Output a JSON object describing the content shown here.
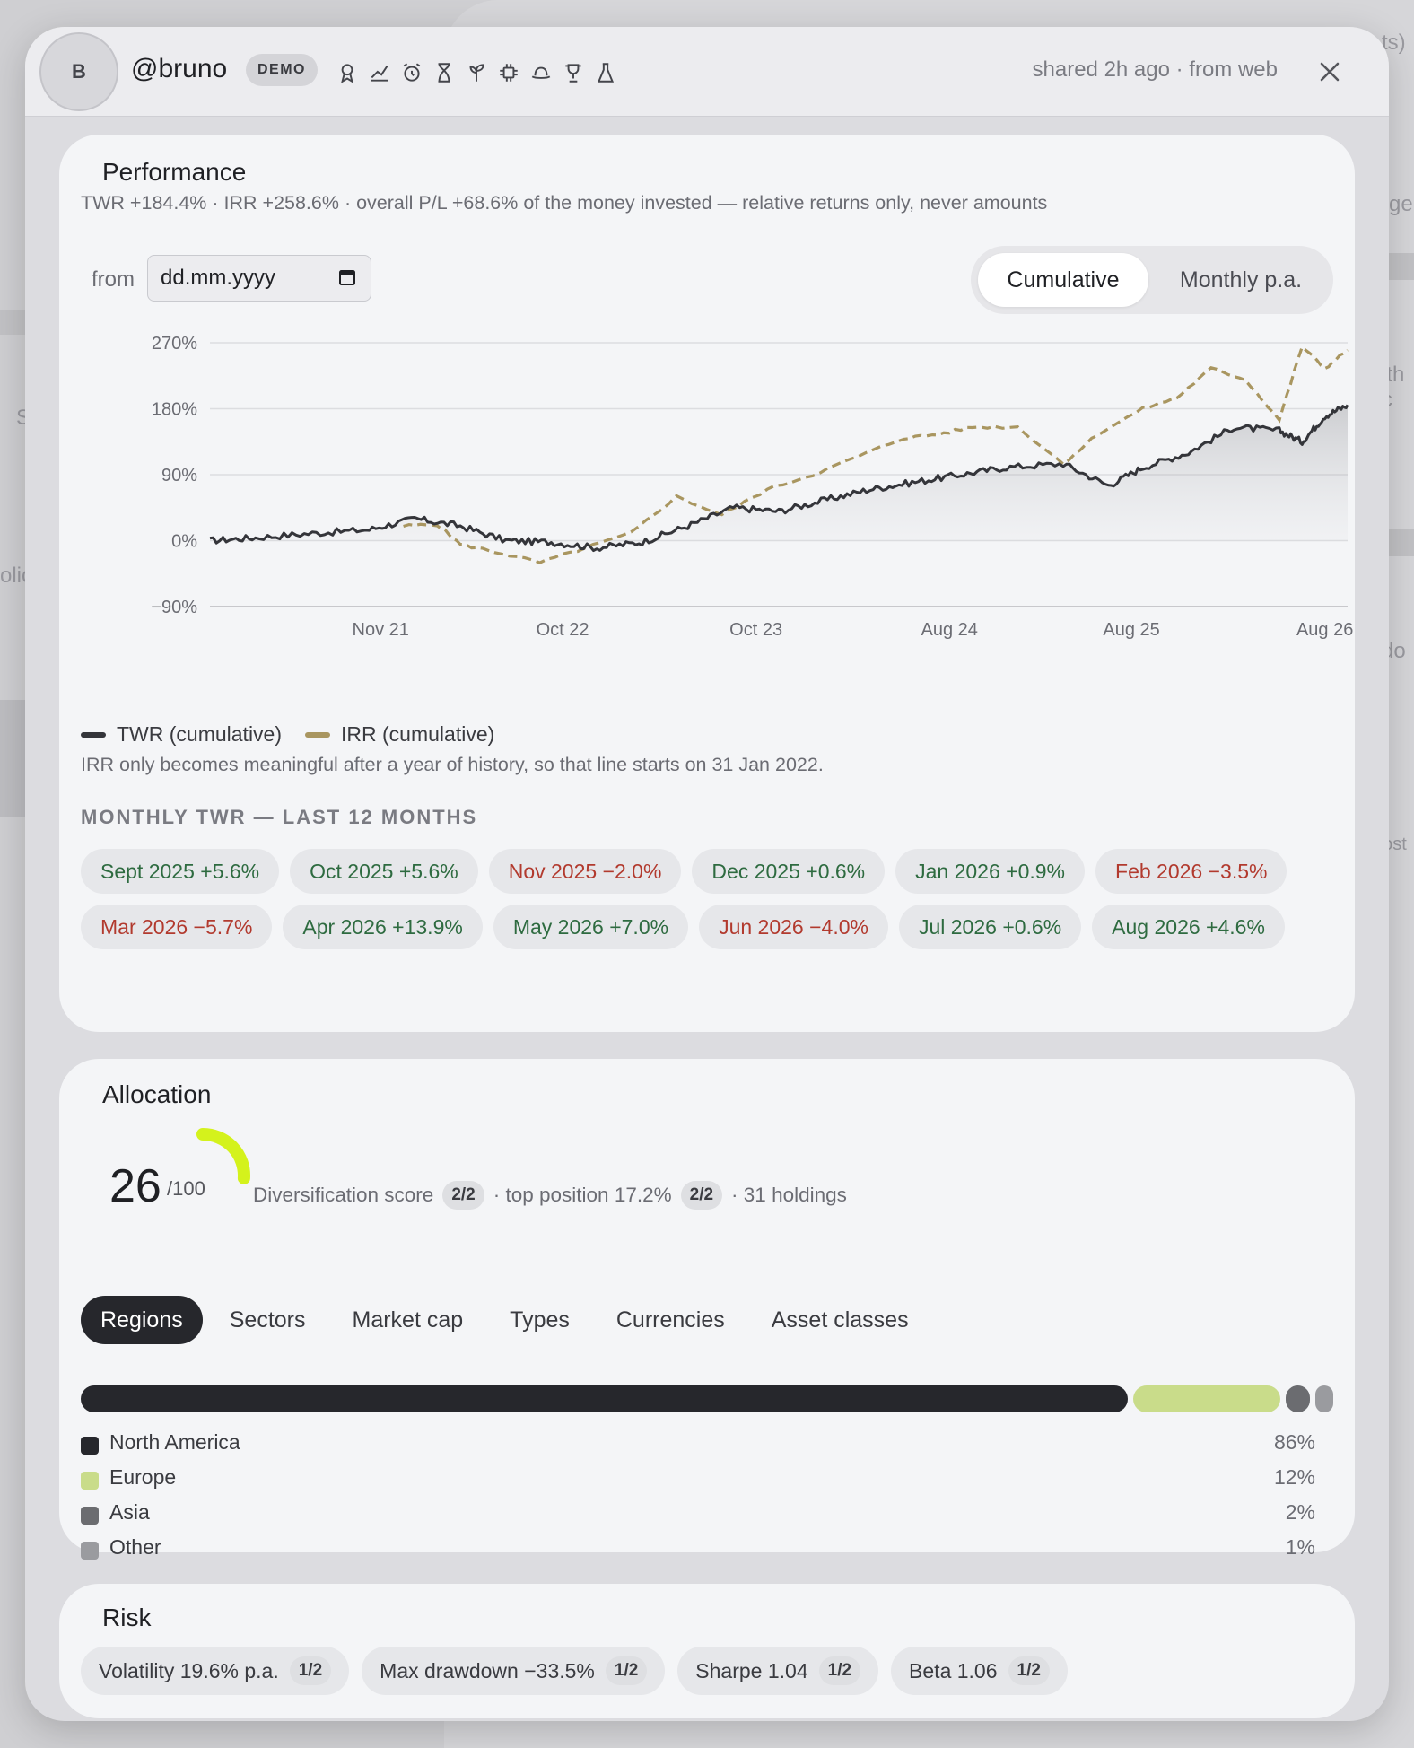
{
  "background": {
    "fragments": [
      "ts)",
      "ge",
      "ith c",
      "S",
      "olic",
      "do",
      "post"
    ]
  },
  "header": {
    "avatar_initial": "B",
    "username": "@bruno",
    "badge": "DEMO",
    "badge_icons": [
      "ribbon-icon",
      "trend-line-icon",
      "alarm-icon",
      "hourglass-icon",
      "sprout-icon",
      "chip-icon",
      "hat-icon",
      "trophy-icon",
      "flask-icon"
    ],
    "shared": "shared 2h ago · from web"
  },
  "performance": {
    "title": "Performance",
    "subtitle": "TWR +184.4% · IRR +258.6% · overall P/L +68.6% of the money invested — relative returns only, never amounts",
    "from_label": "from",
    "date_placeholder": "dd.mm.yyyy",
    "toggle": [
      "Cumulative",
      "Monthly p.a."
    ],
    "legend": [
      {
        "label": "TWR (cumulative)",
        "color": "#34353a"
      },
      {
        "label": "IRR (cumulative)",
        "color": "#a99660"
      }
    ],
    "irr_note": "IRR only becomes meaningful after a year of history, so that line starts on 31 Jan 2022.",
    "monthly_title": "MONTHLY TWR — LAST 12 MONTHS",
    "monthly": [
      {
        "label": "Sept 2025 +5.6%",
        "sign": "pos"
      },
      {
        "label": "Oct 2025 +5.6%",
        "sign": "pos"
      },
      {
        "label": "Nov 2025 −2.0%",
        "sign": "neg"
      },
      {
        "label": "Dec 2025 +0.6%",
        "sign": "pos"
      },
      {
        "label": "Jan 2026 +0.9%",
        "sign": "pos"
      },
      {
        "label": "Feb 2026 −3.5%",
        "sign": "neg"
      },
      {
        "label": "Mar 2026 −5.7%",
        "sign": "neg"
      },
      {
        "label": "Apr 2026 +13.9%",
        "sign": "pos"
      },
      {
        "label": "May 2026 +7.0%",
        "sign": "pos"
      },
      {
        "label": "Jun 2026 −4.0%",
        "sign": "neg"
      },
      {
        "label": "Jul 2026 +0.6%",
        "sign": "pos"
      },
      {
        "label": "Aug 2026 +4.6%",
        "sign": "pos"
      }
    ]
  },
  "chart_data": {
    "type": "line",
    "ylim": [
      -90,
      270
    ],
    "yticks": [
      "270%",
      "180%",
      "90%",
      "0%",
      "−90%"
    ],
    "ytick_values": [
      270,
      180,
      90,
      0,
      -90
    ],
    "xticks": [
      "Nov 21",
      "Oct 22",
      "Oct 23",
      "Aug 24",
      "Aug 25",
      "Aug 26"
    ],
    "xtick_values": [
      0.15,
      0.31,
      0.48,
      0.65,
      0.81,
      0.98
    ],
    "series": [
      {
        "name": "TWR (cumulative)",
        "color": "#34353a",
        "x": [
          0.0,
          0.04,
          0.09,
          0.14,
          0.18,
          0.22,
          0.26,
          0.3,
          0.34,
          0.38,
          0.42,
          0.46,
          0.5,
          0.54,
          0.58,
          0.62,
          0.66,
          0.7,
          0.75,
          0.79,
          0.82,
          0.86,
          0.9,
          0.94,
          0.96,
          0.98,
          1.0
        ],
        "values": [
          0,
          4,
          10,
          15,
          30,
          20,
          0,
          -2,
          -10,
          -2,
          20,
          45,
          40,
          55,
          70,
          80,
          90,
          100,
          105,
          75,
          100,
          120,
          155,
          150,
          135,
          170,
          185
        ]
      },
      {
        "name": "IRR (cumulative)",
        "color": "#a99660",
        "x": [
          0.17,
          0.2,
          0.22,
          0.25,
          0.29,
          0.33,
          0.37,
          0.41,
          0.45,
          0.49,
          0.53,
          0.57,
          0.61,
          0.64,
          0.67,
          0.71,
          0.75,
          0.78,
          0.82,
          0.85,
          0.88,
          0.91,
          0.94,
          0.96,
          0.98,
          1.0
        ],
        "values": [
          20,
          22,
          -5,
          -15,
          -30,
          -10,
          10,
          60,
          35,
          70,
          90,
          115,
          140,
          145,
          155,
          155,
          105,
          145,
          180,
          195,
          235,
          220,
          165,
          265,
          235,
          260
        ]
      }
    ]
  },
  "allocation": {
    "title": "Allocation",
    "score": "26",
    "score_max": "/100",
    "score_value": 26,
    "gauge_color": "#d4f21c",
    "div_text": "Diversification score",
    "div_badge": "2/2",
    "top_text": "· top position 17.2%",
    "top_badge": "2/2",
    "holdings_text": "· 31 holdings",
    "tabs": [
      "Regions",
      "Sectors",
      "Market cap",
      "Types",
      "Currencies",
      "Asset classes"
    ],
    "regions": [
      {
        "name": "North America",
        "pct": "86%",
        "value": 86,
        "color": "#26272c"
      },
      {
        "name": "Europe",
        "pct": "12%",
        "value": 12,
        "color": "#c9dc8a"
      },
      {
        "name": "Asia",
        "pct": "2%",
        "value": 2,
        "color": "#6b6c70"
      },
      {
        "name": "Other",
        "pct": "1%",
        "value": 1,
        "color": "#9a9b9f"
      }
    ]
  },
  "risk": {
    "title": "Risk",
    "items": [
      {
        "label": "Volatility 19.6% p.a.",
        "badge": "1/2"
      },
      {
        "label": "Max drawdown −33.5%",
        "badge": "1/2"
      },
      {
        "label": "Sharpe 1.04",
        "badge": "1/2"
      },
      {
        "label": "Beta 1.06",
        "badge": "1/2"
      }
    ]
  }
}
